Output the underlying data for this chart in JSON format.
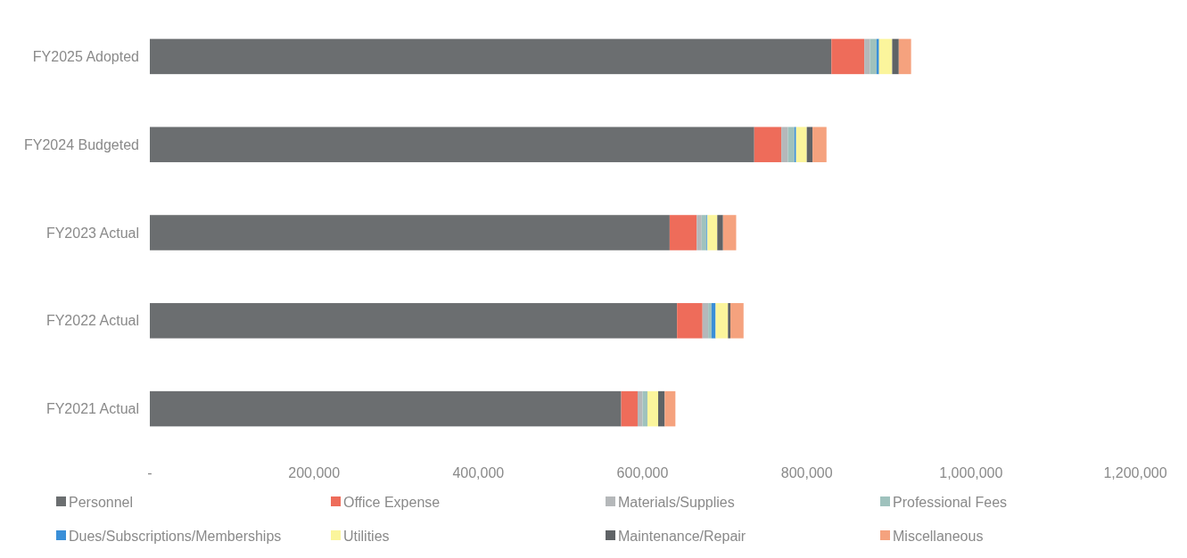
{
  "chart_data": {
    "type": "bar",
    "orientation": "horizontal",
    "stacked": true,
    "categories": [
      "FY2025 Adopted",
      "FY2024 Budgeted",
      "FY2023 Actual",
      "FY2022 Actual",
      "FY2021 Actual"
    ],
    "series": [
      {
        "name": "Personnel",
        "color": "#6b6e70",
        "values": [
          830000,
          736000,
          633000,
          642000,
          574000
        ]
      },
      {
        "name": "Office Expense",
        "color": "#ee6c5a",
        "values": [
          40000,
          33000,
          33000,
          31000,
          20000
        ]
      },
      {
        "name": "Materials/Supplies",
        "color": "#b5b8ba",
        "values": [
          7000,
          8000,
          6000,
          7000,
          6000
        ]
      },
      {
        "name": "Professional Fees",
        "color": "#9fc2bd",
        "values": [
          8000,
          8000,
          6000,
          4000,
          6000
        ]
      },
      {
        "name": "Dues/Subscriptions/Memberships",
        "color": "#3a8fd8",
        "values": [
          3000,
          2000,
          1000,
          5000,
          0
        ]
      },
      {
        "name": "Utilities",
        "color": "#fbf59c",
        "values": [
          16000,
          13000,
          12000,
          15000,
          13000
        ]
      },
      {
        "name": "Maintenance/Repair",
        "color": "#5f6366",
        "values": [
          8000,
          7000,
          7000,
          3000,
          8000
        ]
      },
      {
        "name": "Miscellaneous",
        "color": "#f5a27e",
        "values": [
          15000,
          17000,
          16000,
          16000,
          13000
        ]
      }
    ],
    "xlim": [
      0,
      1200000
    ],
    "xticks": [
      {
        "value": 0,
        "label": "-"
      },
      {
        "value": 200000,
        "label": "200,000"
      },
      {
        "value": 400000,
        "label": "400,000"
      },
      {
        "value": 600000,
        "label": "600,000"
      },
      {
        "value": 800000,
        "label": "800,000"
      },
      {
        "value": 1000000,
        "label": "1,000,000"
      },
      {
        "value": 1200000,
        "label": "1,200,000"
      }
    ],
    "grid": false,
    "legend": "bottom"
  }
}
